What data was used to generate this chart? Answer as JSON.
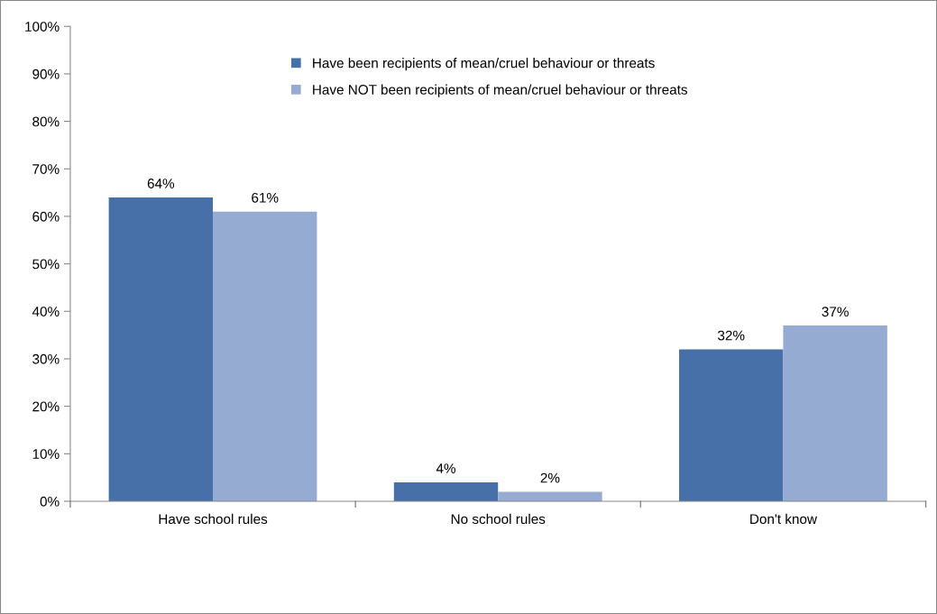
{
  "chart_data": {
    "type": "bar",
    "categories": [
      "Have school rules",
      "No school rules",
      "Don't know"
    ],
    "series": [
      {
        "name": "Have been recipients of mean/cruel behaviour or threats",
        "color": "#4670a7",
        "values": [
          64,
          4,
          32
        ],
        "value_labels": [
          "64%",
          "4%",
          "32%"
        ]
      },
      {
        "name": "Have NOT been recipients of mean/cruel behaviour or threats",
        "color": "#95abd2",
        "values": [
          61,
          2,
          37
        ],
        "value_labels": [
          "61%",
          "2%",
          "37%"
        ]
      }
    ],
    "ylim": [
      0,
      100
    ],
    "yticks": [
      {
        "value": 0,
        "label": "0%"
      },
      {
        "value": 10,
        "label": "10%"
      },
      {
        "value": 20,
        "label": "20%"
      },
      {
        "value": 30,
        "label": "30%"
      },
      {
        "value": 40,
        "label": "40%"
      },
      {
        "value": 50,
        "label": "50%"
      },
      {
        "value": 60,
        "label": "60%"
      },
      {
        "value": 70,
        "label": "70%"
      },
      {
        "value": 80,
        "label": "80%"
      },
      {
        "value": 90,
        "label": "90%"
      },
      {
        "value": 100,
        "label": "100%"
      }
    ],
    "grid": false,
    "legend": "top"
  }
}
